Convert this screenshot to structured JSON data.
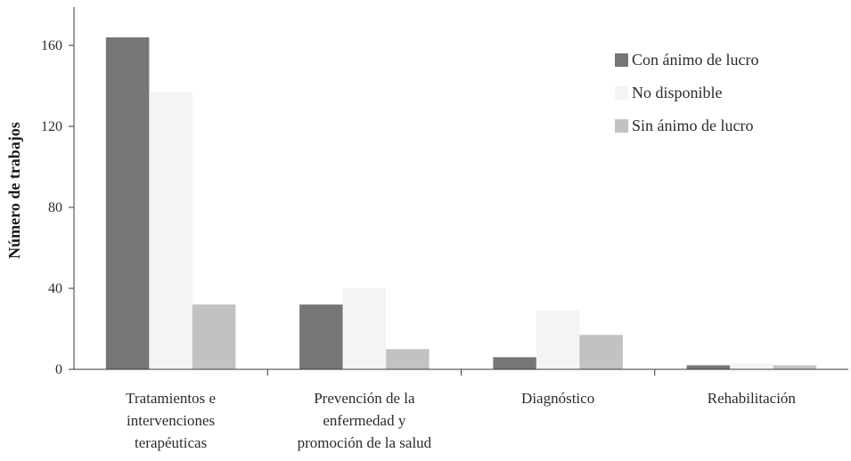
{
  "chart_data": {
    "type": "bar",
    "ylabel": "Número de trabajos",
    "xlabel": "",
    "ylim": [
      0,
      180
    ],
    "yticks": [
      0,
      40,
      80,
      120,
      160
    ],
    "grid": false,
    "legend_position": "top-right",
    "categories": [
      [
        "Tratamientos e",
        "intervenciones",
        "terapéuticas"
      ],
      [
        "Prevención de la",
        "enfermedad y",
        "promoción de la salud"
      ],
      [
        "Diagnóstico"
      ],
      [
        "Rehabilitación"
      ]
    ],
    "series": [
      {
        "name": "Con ánimo de lucro",
        "color": "#757777",
        "values": [
          164,
          32,
          6,
          2
        ]
      },
      {
        "name": "No disponible",
        "color": "#f3f4f4",
        "values": [
          137,
          40,
          29,
          3
        ]
      },
      {
        "name": "Sin ánimo de lucro",
        "color": "#c3c2c1",
        "values": [
          32,
          10,
          17,
          2
        ]
      }
    ]
  }
}
